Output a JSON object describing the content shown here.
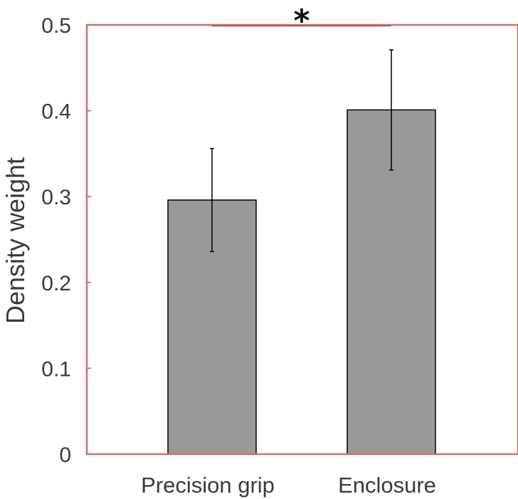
{
  "chart_data": {
    "type": "bar",
    "categories": [
      "Precision grip",
      "Enclosure"
    ],
    "values": [
      0.296,
      0.401
    ],
    "error_low": [
      0.236,
      0.331
    ],
    "error_high": [
      0.356,
      0.471
    ],
    "ylabel": "Density weight",
    "xlabel": "",
    "ylim": [
      0,
      0.5
    ],
    "yticks": [
      0,
      0.1,
      0.2,
      0.3,
      0.4,
      0.5
    ],
    "ytick_labels": [
      "0",
      "0.1",
      "0.2",
      "0.3",
      "0.4",
      "0.5"
    ],
    "significance": {
      "between": [
        "Precision grip",
        "Enclosure"
      ],
      "label": "*"
    },
    "grid": false,
    "legend": "none",
    "colors": {
      "bar": "#999999",
      "frame": "#d2705c",
      "text": "#3a3a3a"
    }
  }
}
